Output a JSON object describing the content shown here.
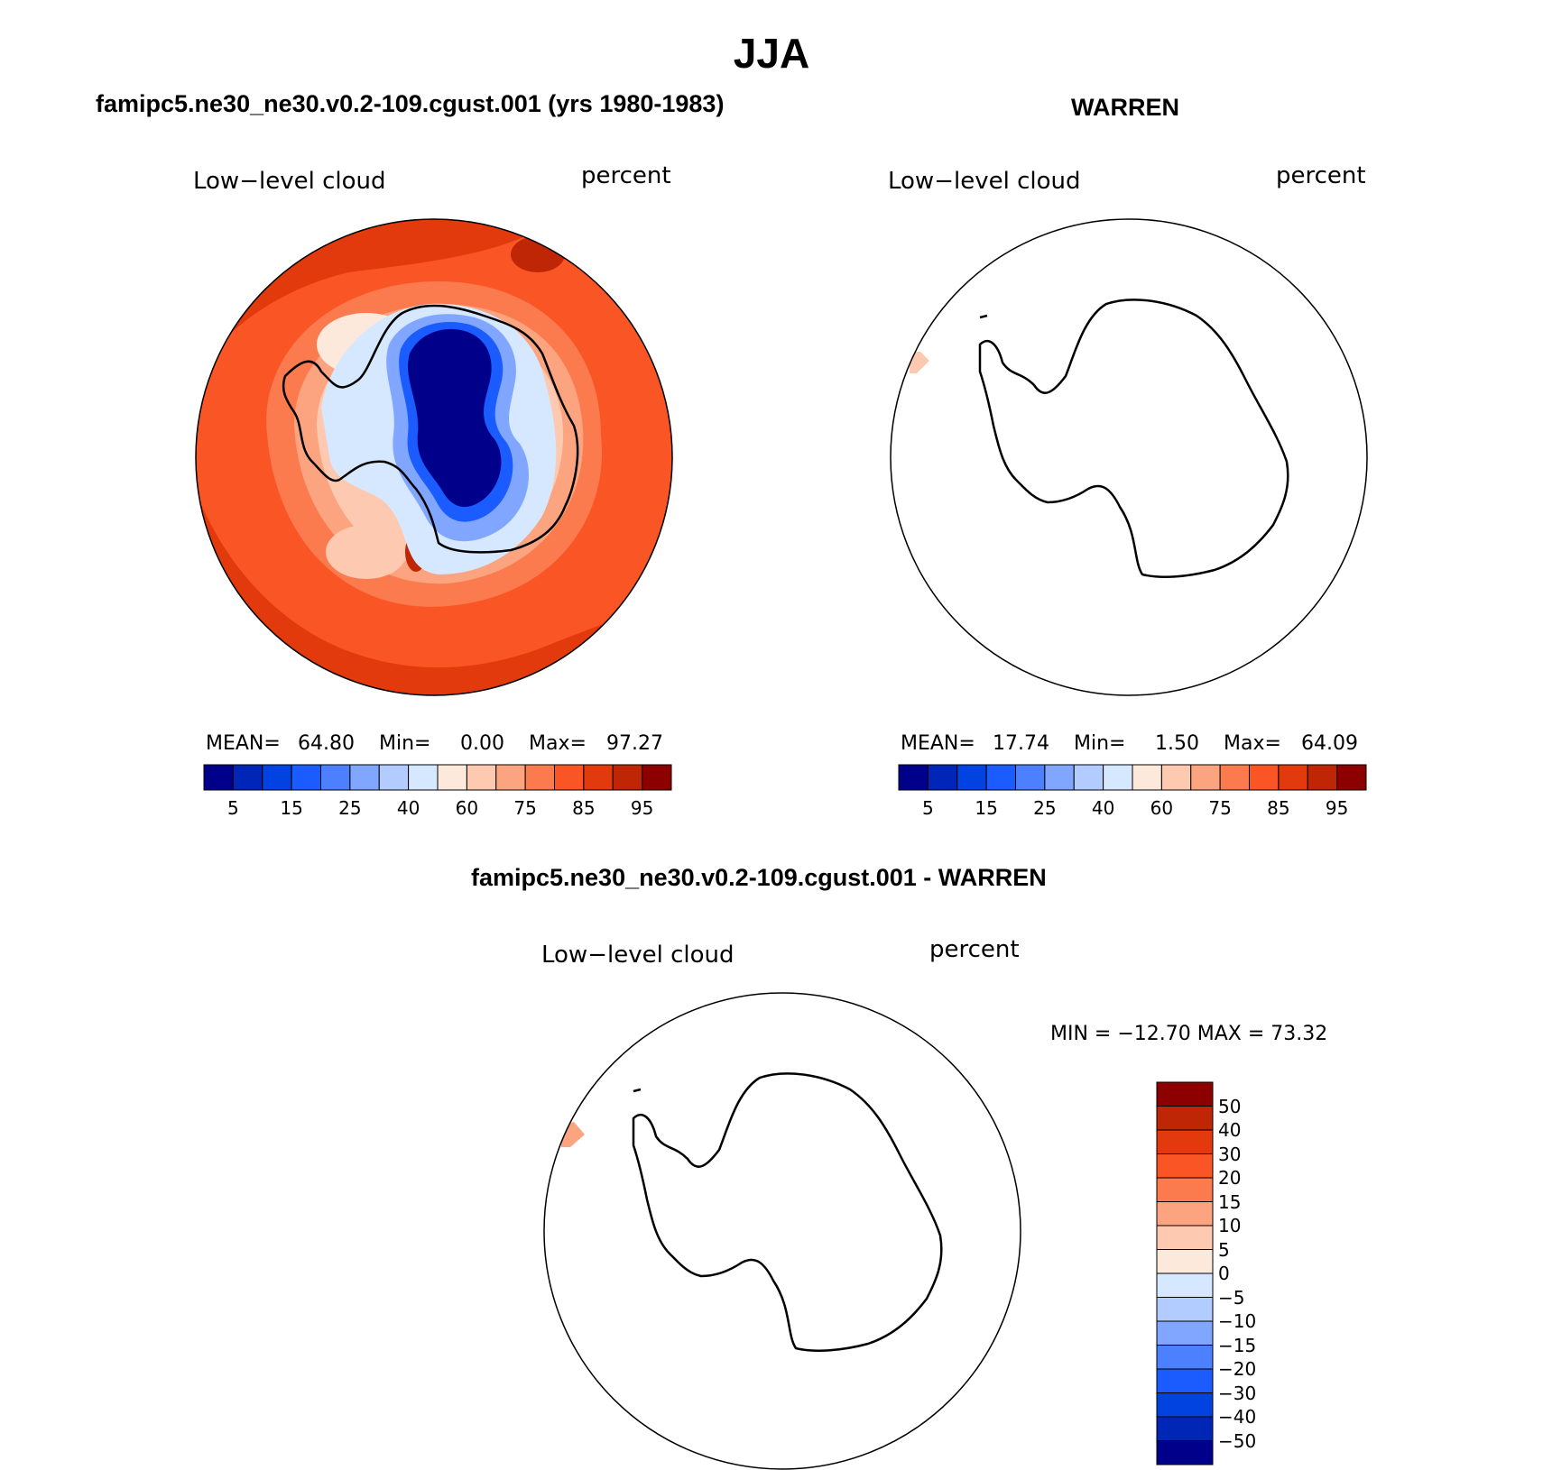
{
  "page": {
    "title": "JJA",
    "colors": {
      "main_scale": [
        "#00008b",
        "#0026b8",
        "#0043e0",
        "#1a5cff",
        "#4d80ff",
        "#80a6ff",
        "#b3ccff",
        "#d6e8ff",
        "#fde9db",
        "#fdc9b1",
        "#fca47f",
        "#fb7a4e",
        "#fa5524",
        "#e23a0c",
        "#be2605",
        "#8c0000"
      ],
      "diff_scale": [
        "#00008b",
        "#0026b8",
        "#0043e0",
        "#1a5cff",
        "#4d80ff",
        "#80a6ff",
        "#b3ccff",
        "#d6e8ff",
        "#fde9db",
        "#fdc9b1",
        "#fca47f",
        "#fb7a4e",
        "#fa5524",
        "#e23a0c",
        "#be2605",
        "#8c0000"
      ]
    },
    "panels": [
      {
        "title": "famipc5.ne30_ne30.v0.2-109.cgust.001 (yrs 1980-1983)",
        "left_label": "Low−level cloud",
        "right_label": "percent",
        "mean_label": "MEAN=",
        "mean_value": "64.80",
        "min_label": "Min=",
        "min_value": "0.00",
        "max_label": "Max=",
        "max_value": "97.27",
        "colorbar_ticks": [
          "5",
          "15",
          "25",
          "40",
          "60",
          "75",
          "85",
          "95"
        ]
      },
      {
        "title": "WARREN",
        "left_label": "Low−level cloud",
        "right_label": "percent",
        "mean_label": "MEAN=",
        "mean_value": "17.74",
        "min_label": "Min=",
        "min_value": "1.50",
        "max_label": "Max=",
        "max_value": "64.09",
        "colorbar_ticks": [
          "5",
          "15",
          "25",
          "40",
          "60",
          "75",
          "85",
          "95"
        ]
      },
      {
        "title": "famipc5.ne30_ne30.v0.2-109.cgust.001 - WARREN",
        "left_label": "Low−level cloud",
        "right_label": "percent",
        "minmax": "MIN = −12.70 MAX =  73.32",
        "colorbar_ticks": [
          "50",
          "40",
          "30",
          "20",
          "15",
          "10",
          "5",
          "0",
          "−5",
          "−10",
          "−15",
          "−20",
          "−30",
          "−40",
          "−50"
        ]
      }
    ]
  }
}
